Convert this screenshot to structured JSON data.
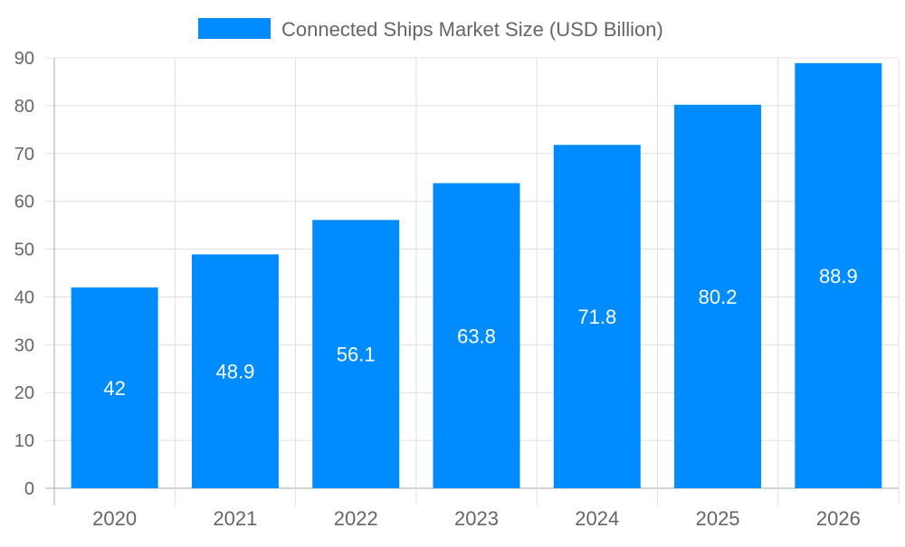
{
  "chart_data": {
    "type": "bar",
    "title": "",
    "xlabel": "",
    "ylabel": "",
    "categories": [
      "2020",
      "2021",
      "2022",
      "2023",
      "2024",
      "2025",
      "2026"
    ],
    "series": [
      {
        "name": "Connected Ships Market Size (USD Billion)",
        "values": [
          42,
          48.9,
          56.1,
          63.8,
          71.8,
          80.2,
          88.9
        ],
        "color": "#008cff"
      }
    ],
    "data_labels": [
      "42",
      "48.9",
      "56.1",
      "63.8",
      "71.8",
      "80.2",
      "88.9"
    ],
    "ylim": [
      0,
      90
    ],
    "yticks": [
      0,
      10,
      20,
      30,
      40,
      50,
      60,
      70,
      80,
      90
    ],
    "grid": true,
    "legend_position": "top"
  }
}
